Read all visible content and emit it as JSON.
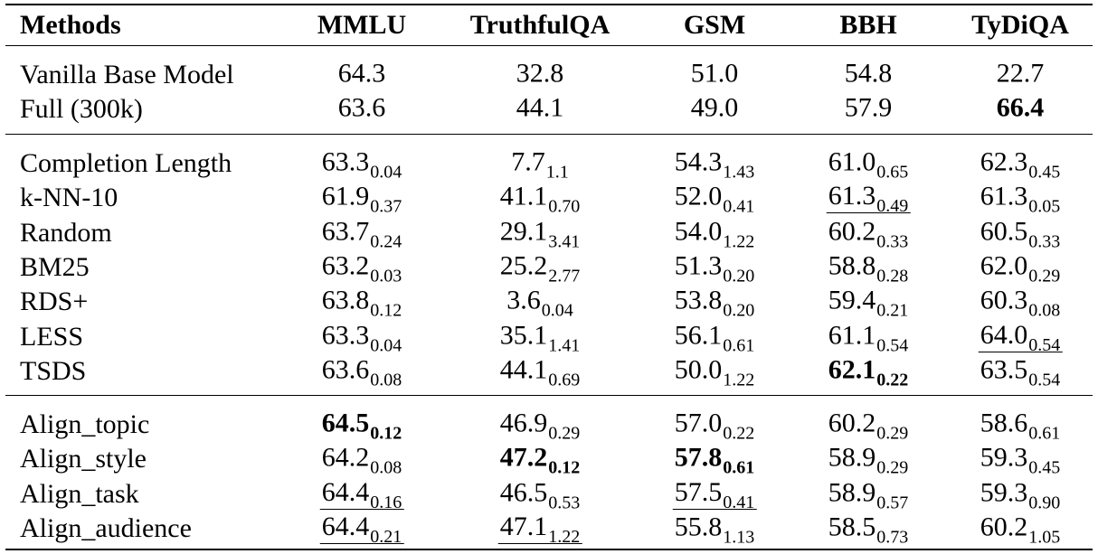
{
  "table": {
    "header": [
      "Methods",
      "MMLU",
      "TruthfulQA",
      "GSM",
      "BBH",
      "TyDiQA"
    ],
    "groups": [
      [
        {
          "method": "Vanilla Base Model",
          "cells": [
            {
              "value": "64.3"
            },
            {
              "value": "32.8"
            },
            {
              "value": "51.0"
            },
            {
              "value": "54.8"
            },
            {
              "value": "22.7"
            }
          ]
        },
        {
          "method": "Full (300k)",
          "cells": [
            {
              "value": "63.6"
            },
            {
              "value": "44.1"
            },
            {
              "value": "49.0"
            },
            {
              "value": "57.9"
            },
            {
              "value": "66.4",
              "bold": true
            }
          ]
        }
      ],
      [
        {
          "method": "Completion Length",
          "cells": [
            {
              "value": "63.3",
              "sub": "0.04"
            },
            {
              "value": "7.7",
              "sub": "1.1"
            },
            {
              "value": "54.3",
              "sub": "1.43"
            },
            {
              "value": "61.0",
              "sub": "0.65"
            },
            {
              "value": "62.3",
              "sub": "0.45"
            }
          ]
        },
        {
          "method": "k-NN-10",
          "cells": [
            {
              "value": "61.9",
              "sub": "0.37"
            },
            {
              "value": "41.1",
              "sub": "0.70"
            },
            {
              "value": "52.0",
              "sub": "0.41"
            },
            {
              "value": "61.3",
              "sub": "0.49",
              "underline": true
            },
            {
              "value": "61.3",
              "sub": "0.05"
            }
          ]
        },
        {
          "method": "Random",
          "cells": [
            {
              "value": "63.7",
              "sub": "0.24"
            },
            {
              "value": "29.1",
              "sub": "3.41"
            },
            {
              "value": "54.0",
              "sub": "1.22"
            },
            {
              "value": "60.2",
              "sub": "0.33"
            },
            {
              "value": "60.5",
              "sub": "0.33"
            }
          ]
        },
        {
          "method": "BM25",
          "cells": [
            {
              "value": "63.2",
              "sub": "0.03"
            },
            {
              "value": "25.2",
              "sub": "2.77"
            },
            {
              "value": "51.3",
              "sub": "0.20"
            },
            {
              "value": "58.8",
              "sub": "0.28"
            },
            {
              "value": "62.0",
              "sub": "0.29"
            }
          ]
        },
        {
          "method": "RDS+",
          "cells": [
            {
              "value": "63.8",
              "sub": "0.12"
            },
            {
              "value": "3.6",
              "sub": "0.04"
            },
            {
              "value": "53.8",
              "sub": "0.20"
            },
            {
              "value": "59.4",
              "sub": "0.21"
            },
            {
              "value": "60.3",
              "sub": "0.08"
            }
          ]
        },
        {
          "method": "LESS",
          "cells": [
            {
              "value": "63.3",
              "sub": "0.04"
            },
            {
              "value": "35.1",
              "sub": "1.41"
            },
            {
              "value": "56.1",
              "sub": "0.61"
            },
            {
              "value": "61.1",
              "sub": "0.54"
            },
            {
              "value": "64.0",
              "sub": "0.54",
              "underline": true
            }
          ]
        },
        {
          "method": "TSDS",
          "cells": [
            {
              "value": "63.6",
              "sub": "0.08"
            },
            {
              "value": "44.1",
              "sub": "0.69"
            },
            {
              "value": "50.0",
              "sub": "1.22"
            },
            {
              "value": "62.1",
              "sub": "0.22",
              "bold": true
            },
            {
              "value": "63.5",
              "sub": "0.54"
            }
          ]
        }
      ],
      [
        {
          "method": "Align_topic",
          "cells": [
            {
              "value": "64.5",
              "sub": "0.12",
              "bold": true
            },
            {
              "value": "46.9",
              "sub": "0.29"
            },
            {
              "value": "57.0",
              "sub": "0.22"
            },
            {
              "value": "60.2",
              "sub": "0.29"
            },
            {
              "value": "58.6",
              "sub": "0.61"
            }
          ]
        },
        {
          "method": "Align_style",
          "cells": [
            {
              "value": "64.2",
              "sub": "0.08"
            },
            {
              "value": "47.2",
              "sub": "0.12",
              "bold": true
            },
            {
              "value": "57.8",
              "sub": "0.61",
              "bold": true
            },
            {
              "value": "58.9",
              "sub": "0.29"
            },
            {
              "value": "59.3",
              "sub": "0.45"
            }
          ]
        },
        {
          "method": "Align_task",
          "cells": [
            {
              "value": "64.4",
              "sub": "0.16",
              "underline": true
            },
            {
              "value": "46.5",
              "sub": "0.53"
            },
            {
              "value": "57.5",
              "sub": "0.41",
              "underline": true
            },
            {
              "value": "58.9",
              "sub": "0.57"
            },
            {
              "value": "59.3",
              "sub": "0.90"
            }
          ]
        },
        {
          "method": "Align_audience",
          "cells": [
            {
              "value": "64.4",
              "sub": "0.21",
              "underline": true
            },
            {
              "value": "47.1",
              "sub": "1.22",
              "underline": true
            },
            {
              "value": "55.8",
              "sub": "1.13"
            },
            {
              "value": "58.5",
              "sub": "0.73"
            },
            {
              "value": "60.2",
              "sub": "1.05"
            }
          ]
        }
      ]
    ]
  }
}
